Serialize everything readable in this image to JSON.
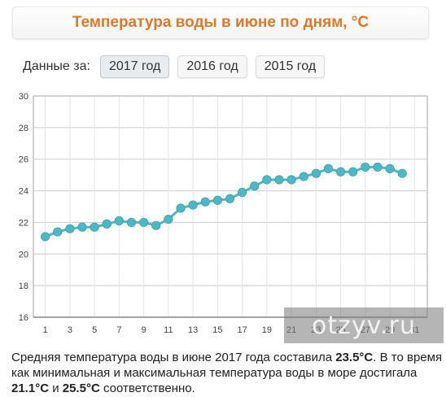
{
  "title": "Температура воды в июне по дням, °C",
  "data_label": "Данные за:",
  "years": [
    {
      "label": "2017 год",
      "active": true
    },
    {
      "label": "2016 год",
      "active": false
    },
    {
      "label": "2015 год",
      "active": false
    }
  ],
  "chart_data": {
    "type": "line",
    "title": "Температура воды в июне по дням, °C",
    "xlabel": "",
    "ylabel": "",
    "xlim": [
      0,
      32
    ],
    "ylim": [
      16,
      30
    ],
    "yticks": [
      16,
      18,
      20,
      22,
      24,
      26,
      28,
      30
    ],
    "xticks": [
      1,
      3,
      5,
      7,
      9,
      11,
      13,
      15,
      17,
      19,
      21,
      23,
      25,
      27,
      29,
      31
    ],
    "grid": true,
    "series": [
      {
        "x": [
          1,
          2,
          3,
          4,
          5,
          6,
          7,
          8,
          9,
          10,
          11,
          12,
          13,
          14,
          15,
          16,
          17,
          18,
          19,
          20,
          21,
          22,
          23,
          24,
          25,
          26,
          27,
          28,
          29,
          30
        ],
        "values": [
          21.1,
          21.4,
          21.6,
          21.7,
          21.7,
          21.9,
          22.1,
          22.0,
          22.0,
          21.8,
          22.2,
          22.9,
          23.1,
          23.3,
          23.4,
          23.5,
          23.9,
          24.3,
          24.7,
          24.7,
          24.7,
          24.9,
          25.1,
          25.4,
          25.2,
          25.2,
          25.5,
          25.5,
          25.4,
          25.1
        ],
        "color": "#4db8c4"
      }
    ]
  },
  "watermark": "otzyv.ru",
  "summary": {
    "p1": "Средняя температура воды в июне 2017 года составила ",
    "avg": "23.5°C",
    "p2": ". В то время как минимальная и максимальная температура воды в море достигала ",
    "min": "21.1°C",
    "p3": " и ",
    "max": "25.5°C",
    "p4": " соответственно."
  }
}
